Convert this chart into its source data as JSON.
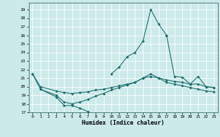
{
  "title": "",
  "xlabel": "Humidex (Indice chaleur)",
  "background_color": "#cdeaea",
  "grid_color": "#ffffff",
  "line_color": "#1a6b6b",
  "xlim": [
    -0.5,
    23.5
  ],
  "ylim": [
    17,
    29.8
  ],
  "yticks": [
    17,
    18,
    19,
    20,
    21,
    22,
    23,
    24,
    25,
    26,
    27,
    28,
    29
  ],
  "xticks": [
    0,
    1,
    2,
    3,
    4,
    5,
    6,
    7,
    8,
    9,
    10,
    11,
    12,
    13,
    14,
    15,
    16,
    17,
    18,
    19,
    20,
    21,
    22,
    23
  ],
  "lines": [
    {
      "x": [
        0,
        1,
        3,
        4,
        5,
        6,
        7
      ],
      "y": [
        21.5,
        19.7,
        18.8,
        17.8,
        17.8,
        17.5,
        17.1
      ]
    },
    {
      "x": [
        1,
        3,
        4,
        5,
        6,
        7,
        8,
        9,
        10,
        11,
        12,
        13,
        14,
        15,
        16,
        17,
        18,
        19,
        20,
        21,
        22,
        23
      ],
      "y": [
        19.7,
        19.0,
        18.2,
        18.0,
        18.2,
        18.5,
        18.9,
        19.2,
        19.6,
        19.9,
        20.2,
        20.5,
        21.0,
        21.5,
        21.0,
        20.5,
        20.3,
        20.1,
        19.9,
        19.7,
        19.5,
        19.4
      ]
    },
    {
      "x": [
        10,
        11,
        12,
        13,
        14,
        15,
        16,
        17
      ],
      "y": [
        21.5,
        22.3,
        23.5,
        24.0,
        25.3,
        29.0,
        27.3,
        26.0
      ]
    },
    {
      "x": [
        17,
        18,
        19,
        20,
        21,
        22,
        23
      ],
      "y": [
        26.0,
        21.2,
        21.1,
        20.3,
        21.2,
        20.0,
        19.9
      ]
    },
    {
      "x": [
        0,
        1,
        3,
        4,
        5,
        6,
        7,
        8,
        9,
        10,
        11,
        12,
        13,
        14,
        15,
        16,
        17,
        18,
        19,
        20,
        21,
        22,
        23
      ],
      "y": [
        21.5,
        20.0,
        19.5,
        19.3,
        19.2,
        19.3,
        19.4,
        19.6,
        19.7,
        19.9,
        20.1,
        20.3,
        20.5,
        21.0,
        21.2,
        21.0,
        20.8,
        20.6,
        20.5,
        20.3,
        20.3,
        20.0,
        19.9
      ]
    }
  ]
}
